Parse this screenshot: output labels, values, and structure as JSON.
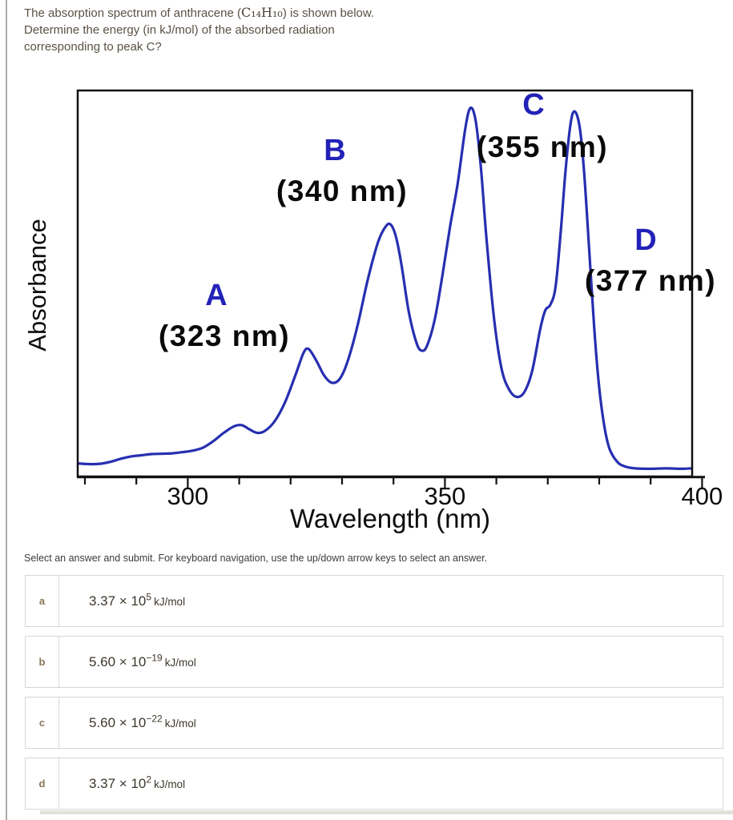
{
  "question": {
    "line1_pre": "The absorption spectrum of anthracene (",
    "formula": "C₁₄H₁₀",
    "line1_post": ") is shown below.",
    "line2": "Determine the energy (in kJ/mol) of the absorbed radiation",
    "line3": "corresponding to peak C?"
  },
  "chart_data": {
    "type": "line",
    "title": "",
    "xlabel": "Wavelength (nm)",
    "ylabel": "Absorbance",
    "x_axis": {
      "min_nm": 278.6,
      "max_nm": 400,
      "minor_tick_step_nm": 10,
      "labeled_ticks": [
        300,
        350,
        400
      ]
    },
    "y_axis": {
      "ticks": "none",
      "normalized_range": [
        0,
        1
      ]
    },
    "grid": "off",
    "curve_color": "#262fb0",
    "peak_annotations": [
      {
        "letter": "A",
        "label": "(323 nm)",
        "nm": 323
      },
      {
        "letter": "B",
        "label": "(340 nm)",
        "nm": 340
      },
      {
        "letter": "C",
        "label": "(355 nm)",
        "nm": 355
      },
      {
        "letter": "D",
        "label": "(377 nm)",
        "nm": 377
      }
    ],
    "points": [
      [
        278.6,
        0.034
      ],
      [
        281,
        0.032
      ],
      [
        283,
        0.033
      ],
      [
        285,
        0.038
      ],
      [
        287,
        0.046
      ],
      [
        289,
        0.052
      ],
      [
        291,
        0.055
      ],
      [
        293,
        0.058
      ],
      [
        295,
        0.059
      ],
      [
        297,
        0.06
      ],
      [
        299,
        0.063
      ],
      [
        301,
        0.067
      ],
      [
        303,
        0.075
      ],
      [
        305,
        0.092
      ],
      [
        307,
        0.113
      ],
      [
        309,
        0.13
      ],
      [
        310.5,
        0.133
      ],
      [
        312,
        0.122
      ],
      [
        313.5,
        0.113
      ],
      [
        315,
        0.118
      ],
      [
        317,
        0.145
      ],
      [
        319,
        0.195
      ],
      [
        321,
        0.265
      ],
      [
        322.5,
        0.32
      ],
      [
        323.5,
        0.33
      ],
      [
        325,
        0.3
      ],
      [
        326.5,
        0.262
      ],
      [
        328,
        0.243
      ],
      [
        329.5,
        0.252
      ],
      [
        331,
        0.295
      ],
      [
        333,
        0.39
      ],
      [
        335,
        0.51
      ],
      [
        337,
        0.607
      ],
      [
        338.5,
        0.648
      ],
      [
        339.5,
        0.652
      ],
      [
        340.5,
        0.62
      ],
      [
        341.5,
        0.553
      ],
      [
        343,
        0.425
      ],
      [
        344.5,
        0.345
      ],
      [
        345.5,
        0.326
      ],
      [
        346.5,
        0.338
      ],
      [
        348,
        0.405
      ],
      [
        349.5,
        0.52
      ],
      [
        351,
        0.647
      ],
      [
        352.5,
        0.76
      ],
      [
        354,
        0.905
      ],
      [
        355,
        0.955
      ],
      [
        356,
        0.92
      ],
      [
        357,
        0.8
      ],
      [
        358,
        0.63
      ],
      [
        359.5,
        0.415
      ],
      [
        361,
        0.28
      ],
      [
        362.5,
        0.225
      ],
      [
        364,
        0.206
      ],
      [
        365.5,
        0.22
      ],
      [
        367,
        0.275
      ],
      [
        368.5,
        0.38
      ],
      [
        369.5,
        0.43
      ],
      [
        370.5,
        0.445
      ],
      [
        371.5,
        0.49
      ],
      [
        372.5,
        0.63
      ],
      [
        373.5,
        0.8
      ],
      [
        374.5,
        0.92
      ],
      [
        375.3,
        0.945
      ],
      [
        376.2,
        0.905
      ],
      [
        377,
        0.8
      ],
      [
        378,
        0.6
      ],
      [
        379,
        0.39
      ],
      [
        380,
        0.23
      ],
      [
        381,
        0.13
      ],
      [
        382,
        0.072
      ],
      [
        383.5,
        0.038
      ],
      [
        385,
        0.026
      ],
      [
        387,
        0.021
      ],
      [
        390,
        0.02
      ],
      [
        393,
        0.021
      ],
      [
        396,
        0.02
      ],
      [
        399.4,
        0.022
      ]
    ]
  },
  "hint": "Select an answer and submit. For keyboard navigation, use the up/down arrow keys to select an answer.",
  "options": [
    {
      "letter": "a",
      "value_base": "3.37 × 10",
      "value_exp": "5",
      "unit": "kJ/mol"
    },
    {
      "letter": "b",
      "value_base": "5.60 × 10",
      "value_exp": "−19",
      "unit": "kJ/mol"
    },
    {
      "letter": "c",
      "value_base": "5.60 × 10",
      "value_exp": "−22",
      "unit": "kJ/mol"
    },
    {
      "letter": "d",
      "value_base": "3.37 × 10",
      "value_exp": "2",
      "unit": "kJ/mol"
    }
  ]
}
